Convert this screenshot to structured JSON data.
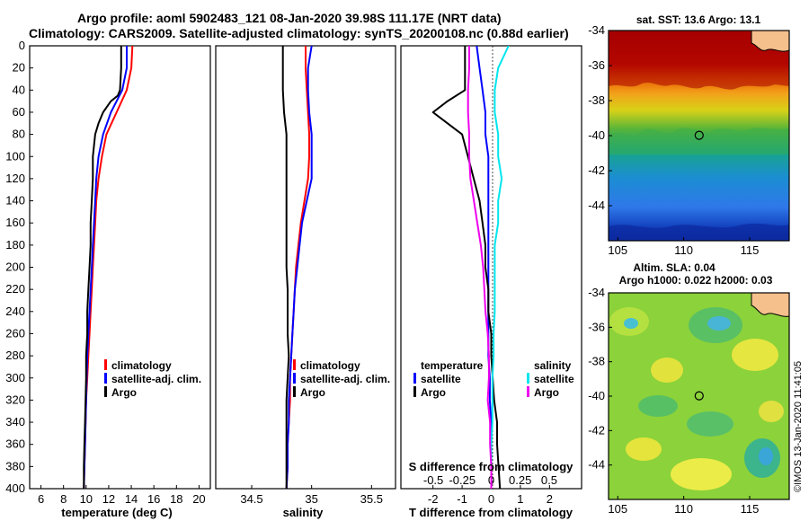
{
  "header": {
    "line1": "Argo profile: aoml 5902483_121 08-Jan-2020 39.98S 111.17E (NRT data)",
    "line2": "Climatology: CARS2009. Satellite-adjusted climatology: synTS_20200108.nc (0.88d earlier)"
  },
  "colors": {
    "climatology": "#ff0000",
    "satellite": "#0000ff",
    "argo": "#000000",
    "salinity_satellite": "#00e5ee",
    "salinity_argo": "#ee00ee"
  },
  "chart_data": [
    {
      "type": "line",
      "title": "",
      "xlabel": "temperature (deg C)",
      "ylabel": "",
      "xlim": [
        5,
        21
      ],
      "ylim": [
        400,
        0
      ],
      "xticks": [
        6,
        8,
        10,
        12,
        14,
        16,
        18,
        20
      ],
      "yticks": [
        0,
        20,
        40,
        60,
        80,
        100,
        120,
        140,
        160,
        180,
        200,
        220,
        240,
        260,
        280,
        300,
        320,
        340,
        360,
        380,
        400
      ],
      "legend": [
        "climatology",
        "satellite-adj. clim.",
        "Argo"
      ],
      "legend_position": "bottom-right",
      "series": [
        {
          "name": "climatology",
          "depth": [
            0,
            20,
            40,
            60,
            80,
            100,
            120,
            140,
            160,
            180,
            200,
            220,
            240,
            260,
            280,
            300,
            320,
            340,
            360,
            380,
            400
          ],
          "values": [
            14.1,
            14.0,
            13.6,
            12.7,
            11.8,
            11.4,
            11.1,
            10.9,
            10.8,
            10.7,
            10.6,
            10.5,
            10.4,
            10.3,
            10.2,
            10.1,
            10.0,
            9.95,
            9.9,
            9.85,
            9.8
          ]
        },
        {
          "name": "satellite-adj. clim.",
          "depth": [
            0,
            20,
            40,
            60,
            80,
            100,
            120,
            140,
            160,
            180,
            200,
            220,
            240,
            260,
            280,
            300,
            320,
            340,
            360,
            380,
            400
          ],
          "values": [
            13.6,
            13.6,
            13.2,
            12.2,
            11.5,
            11.1,
            10.9,
            10.8,
            10.7,
            10.6,
            10.5,
            10.4,
            10.3,
            10.2,
            10.1,
            10.05,
            10.0,
            9.95,
            9.9,
            9.85,
            9.8
          ]
        },
        {
          "name": "Argo",
          "depth": [
            0,
            20,
            40,
            45,
            50,
            60,
            70,
            80,
            100,
            120,
            140,
            160,
            180,
            200,
            220,
            240,
            260,
            280,
            300,
            320,
            340,
            360,
            380,
            400
          ],
          "values": [
            13.1,
            13.1,
            13.0,
            12.8,
            12.2,
            11.5,
            11.1,
            10.8,
            10.6,
            10.6,
            10.5,
            10.4,
            10.4,
            10.3,
            10.2,
            10.1,
            10.1,
            10.0,
            10.0,
            9.95,
            9.9,
            9.85,
            9.8,
            9.8
          ]
        }
      ]
    },
    {
      "type": "line",
      "title": "",
      "xlabel": "salinity",
      "ylabel": "",
      "xlim": [
        34.2,
        35.7
      ],
      "ylim": [
        400,
        0
      ],
      "xticks": [
        34.5,
        35,
        35.5
      ],
      "legend": [
        "climatology",
        "satellite-adj. clim.",
        "Argo"
      ],
      "legend_position": "bottom-right",
      "series": [
        {
          "name": "climatology",
          "depth": [
            0,
            20,
            40,
            60,
            80,
            100,
            120,
            140,
            160,
            180,
            200,
            220,
            240,
            260,
            280,
            300,
            320,
            340,
            360,
            380,
            400
          ],
          "values": [
            34.95,
            34.95,
            34.96,
            34.97,
            34.98,
            34.98,
            34.97,
            34.94,
            34.91,
            34.89,
            34.87,
            34.86,
            34.85,
            34.84,
            34.83,
            34.82,
            34.82,
            34.81,
            34.8,
            34.8,
            34.79
          ]
        },
        {
          "name": "satellite-adj. clim.",
          "depth": [
            0,
            20,
            40,
            60,
            80,
            100,
            120,
            140,
            160,
            180,
            200,
            220,
            240,
            260,
            280,
            300,
            320,
            340,
            360,
            380,
            400
          ],
          "values": [
            35.0,
            34.97,
            34.97,
            34.98,
            35.0,
            35.0,
            35.0,
            34.96,
            34.92,
            34.9,
            34.88,
            34.86,
            34.85,
            34.84,
            34.83,
            34.82,
            34.81,
            34.81,
            34.8,
            34.8,
            34.79
          ]
        },
        {
          "name": "Argo",
          "depth": [
            0,
            20,
            40,
            60,
            80,
            100,
            120,
            140,
            160,
            180,
            200,
            220,
            240,
            260,
            280,
            300,
            320,
            340,
            360,
            380,
            400
          ],
          "values": [
            34.76,
            34.76,
            34.76,
            34.77,
            34.79,
            34.79,
            34.79,
            34.79,
            34.79,
            34.79,
            34.79,
            34.8,
            34.8,
            34.8,
            34.81,
            34.8,
            34.79,
            34.79,
            34.79,
            34.79,
            34.79
          ]
        }
      ]
    },
    {
      "type": "line",
      "title": "",
      "xlabel": "T difference from climatology",
      "x2label": "S difference from climatology",
      "ylabel": "",
      "xlim": [
        -3.1,
        3.1
      ],
      "ylim": [
        400,
        0
      ],
      "xticks": [
        -2,
        -1,
        0,
        1,
        2
      ],
      "x2ticks": [
        "-0.5",
        "-0.25",
        "0",
        "0.25",
        "0.5"
      ],
      "legend_temperature_title": "temperature",
      "legend_salinity_title": "salinity",
      "legend": [
        "satellite",
        "Argo",
        "satellite",
        "Argo"
      ],
      "legend_position": "bottom",
      "series": [
        {
          "name": "temperature satellite",
          "depth": [
            0,
            20,
            40,
            60,
            80,
            100,
            120,
            140,
            160,
            180,
            200,
            220,
            240,
            260,
            280,
            300,
            320,
            340,
            360,
            380,
            400
          ],
          "values": [
            -0.5,
            -0.4,
            -0.3,
            -0.2,
            -0.2,
            -0.1,
            -0.1,
            -0.1,
            -0.1,
            -0.1,
            -0.1,
            -0.1,
            -0.1,
            -0.1,
            -0.1,
            -0.05,
            -0.05,
            0,
            0,
            0,
            0
          ]
        },
        {
          "name": "temperature Argo",
          "depth": [
            0,
            20,
            40,
            50,
            60,
            70,
            80,
            100,
            120,
            140,
            160,
            180,
            200,
            220,
            240,
            260,
            280,
            300,
            320,
            340,
            360,
            380,
            400
          ],
          "values": [
            -0.9,
            -0.9,
            -0.9,
            -1.5,
            -2.0,
            -1.5,
            -1.0,
            -0.8,
            -0.6,
            -0.4,
            -0.3,
            -0.2,
            -0.2,
            -0.1,
            -0.1,
            0,
            0,
            0.05,
            0.1,
            0.2,
            0.2,
            0.25,
            0.3
          ]
        },
        {
          "name": "salinity satellite",
          "depth": [
            0,
            20,
            40,
            60,
            80,
            100,
            120,
            140,
            160,
            180,
            200,
            220,
            240,
            260,
            280,
            300,
            320,
            340,
            360,
            380,
            400
          ],
          "values": [
            0.15,
            0.06,
            0.03,
            0.03,
            0.06,
            0.06,
            0.09,
            0.06,
            0.06,
            0.03,
            0.03,
            0.03,
            0.03,
            0.02,
            0.02,
            0.01,
            0.01,
            0.01,
            0,
            0,
            0
          ]
        },
        {
          "name": "salinity Argo",
          "depth": [
            0,
            20,
            40,
            60,
            80,
            100,
            120,
            140,
            160,
            180,
            200,
            220,
            240,
            260,
            280,
            300,
            320,
            340,
            360,
            380,
            400
          ],
          "values": [
            -0.19,
            -0.19,
            -0.2,
            -0.2,
            -0.19,
            -0.19,
            -0.18,
            -0.15,
            -0.12,
            -0.09,
            -0.07,
            -0.06,
            -0.05,
            -0.03,
            -0.02,
            -0.02,
            -0.03,
            -0.01,
            -0.01,
            0,
            0
          ]
        }
      ]
    },
    {
      "type": "heatmap",
      "title": "sat. SST: 13.6 Argo: 13.1",
      "xlabel": "",
      "ylabel": "",
      "xlim": [
        104.3,
        118
      ],
      "ylim": [
        -46,
        -34
      ],
      "xticks": [
        105,
        110,
        115
      ],
      "yticks": [
        -34,
        -36,
        -38,
        -40,
        -42,
        -44
      ],
      "marker_position": [
        111.17,
        -39.98
      ]
    },
    {
      "type": "heatmap",
      "title": "Altim. SLA: 0.04",
      "subtitle": "Argo h1000: 0.022 h2000: 0.03",
      "xlabel": "",
      "ylabel": "",
      "xlim": [
        104.3,
        118
      ],
      "ylim": [
        -46,
        -34
      ],
      "xticks": [
        105,
        110,
        115
      ],
      "yticks": [
        -34,
        -36,
        -38,
        -40,
        -42,
        -44
      ],
      "marker_position": [
        111.17,
        -39.98
      ]
    }
  ],
  "watermark": "©IMOS 13-Jan-2020 11:41:05"
}
